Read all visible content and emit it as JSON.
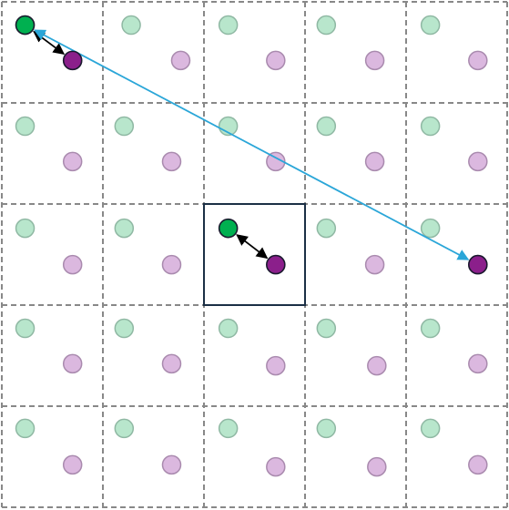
{
  "diagram": {
    "grid": {
      "rows": 5,
      "cols": 5,
      "line_style": "dashed",
      "line_color": "#888888"
    },
    "colors": {
      "green_point": "#00b050",
      "green_point_faded": "#b8e6cc",
      "purple_point": "#8b1f8b",
      "purple_point_faded": "#dbb8df",
      "short_arrow": "#000000",
      "long_arrow": "#2aa6d8",
      "highlight_cell_border": "#1b2f45"
    },
    "highlighted_cell": {
      "row": 2,
      "col": 2
    },
    "points": [
      {
        "row": 0,
        "col": 0,
        "green": [
          0.23,
          0.23
        ],
        "purple": [
          0.7,
          0.58
        ]
      },
      {
        "row": 0,
        "col": 1,
        "green": [
          0.28,
          0.23
        ],
        "purple": [
          0.77,
          0.58
        ]
      },
      {
        "row": 0,
        "col": 2,
        "green": [
          0.24,
          0.23
        ],
        "purple": [
          0.71,
          0.58
        ]
      },
      {
        "row": 0,
        "col": 3,
        "green": [
          0.21,
          0.23
        ],
        "purple": [
          0.69,
          0.58
        ]
      },
      {
        "row": 0,
        "col": 4,
        "green": [
          0.24,
          0.23
        ],
        "purple": [
          0.71,
          0.58
        ]
      },
      {
        "row": 1,
        "col": 0,
        "green": [
          0.23,
          0.23
        ],
        "purple": [
          0.7,
          0.58
        ]
      },
      {
        "row": 1,
        "col": 1,
        "green": [
          0.21,
          0.23
        ],
        "purple": [
          0.68,
          0.58
        ]
      },
      {
        "row": 1,
        "col": 2,
        "green": [
          0.24,
          0.23
        ],
        "purple": [
          0.71,
          0.58
        ]
      },
      {
        "row": 1,
        "col": 3,
        "green": [
          0.21,
          0.23
        ],
        "purple": [
          0.69,
          0.58
        ]
      },
      {
        "row": 1,
        "col": 4,
        "green": [
          0.24,
          0.23
        ],
        "purple": [
          0.71,
          0.58
        ]
      },
      {
        "row": 2,
        "col": 0,
        "green": [
          0.23,
          0.24
        ],
        "purple": [
          0.7,
          0.6
        ]
      },
      {
        "row": 2,
        "col": 1,
        "green": [
          0.21,
          0.24
        ],
        "purple": [
          0.68,
          0.6
        ]
      },
      {
        "row": 2,
        "col": 2,
        "green": [
          0.24,
          0.24
        ],
        "purple": [
          0.71,
          0.6
        ],
        "main": true
      },
      {
        "row": 2,
        "col": 3,
        "green": [
          0.21,
          0.24
        ],
        "purple": [
          0.69,
          0.6
        ]
      },
      {
        "row": 2,
        "col": 4,
        "green": [
          0.24,
          0.24
        ],
        "purple": [
          0.71,
          0.6
        ]
      },
      {
        "row": 3,
        "col": 0,
        "green": [
          0.23,
          0.23
        ],
        "purple": [
          0.7,
          0.58
        ]
      },
      {
        "row": 3,
        "col": 1,
        "green": [
          0.21,
          0.23
        ],
        "purple": [
          0.68,
          0.58
        ]
      },
      {
        "row": 3,
        "col": 2,
        "green": [
          0.24,
          0.23
        ],
        "purple": [
          0.71,
          0.6
        ]
      },
      {
        "row": 3,
        "col": 3,
        "green": [
          0.21,
          0.23
        ],
        "purple": [
          0.71,
          0.6
        ]
      },
      {
        "row": 3,
        "col": 4,
        "green": [
          0.24,
          0.23
        ],
        "purple": [
          0.71,
          0.58
        ]
      },
      {
        "row": 4,
        "col": 0,
        "green": [
          0.23,
          0.22
        ],
        "purple": [
          0.7,
          0.58
        ]
      },
      {
        "row": 4,
        "col": 1,
        "green": [
          0.21,
          0.22
        ],
        "purple": [
          0.68,
          0.58
        ]
      },
      {
        "row": 4,
        "col": 2,
        "green": [
          0.24,
          0.22
        ],
        "purple": [
          0.71,
          0.6
        ]
      },
      {
        "row": 4,
        "col": 3,
        "green": [
          0.21,
          0.22
        ],
        "purple": [
          0.71,
          0.6
        ]
      },
      {
        "row": 4,
        "col": 4,
        "green": [
          0.24,
          0.22
        ],
        "purple": [
          0.71,
          0.58
        ]
      }
    ],
    "arrows": [
      {
        "name": "short-arrow-top-left",
        "from": {
          "row": 0,
          "col": 0,
          "point": "purple"
        },
        "to": {
          "row": 0,
          "col": 0,
          "point": "green"
        },
        "both_ends": true,
        "color_key": "short_arrow"
      },
      {
        "name": "short-arrow-center",
        "from": {
          "row": 2,
          "col": 2,
          "point": "purple"
        },
        "to": {
          "row": 2,
          "col": 2,
          "point": "green"
        },
        "both_ends": true,
        "color_key": "short_arrow"
      },
      {
        "name": "long-arrow",
        "from": {
          "row": 0,
          "col": 0,
          "point": "green"
        },
        "to": {
          "row": 2,
          "col": 4,
          "point": "purple"
        },
        "both_ends": true,
        "color_key": "long_arrow"
      }
    ],
    "solid_points": [
      {
        "row": 0,
        "col": 0,
        "point": "green"
      },
      {
        "row": 0,
        "col": 0,
        "point": "purple"
      },
      {
        "row": 2,
        "col": 2,
        "point": "green"
      },
      {
        "row": 2,
        "col": 2,
        "point": "purple"
      },
      {
        "row": 2,
        "col": 4,
        "point": "purple"
      }
    ]
  }
}
